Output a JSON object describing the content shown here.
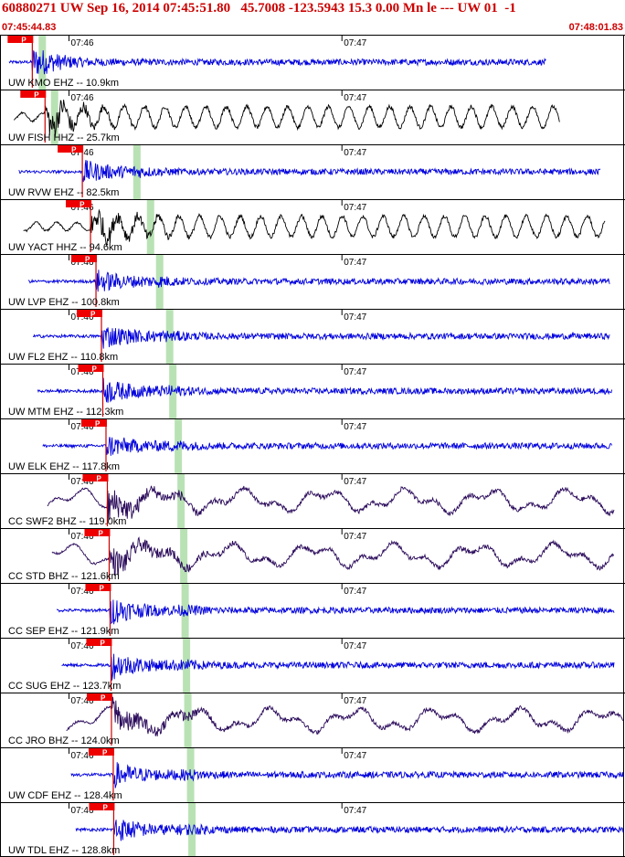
{
  "header": {
    "title": "60880271 UW Sep 16, 2014 07:45:51.80   45.7008 -123.5943 15.3 0.00 Mn le --- UW 01  -1",
    "start_time": "07:45:44.83",
    "end_time": "07:48:01.83"
  },
  "colors": {
    "header_text": "#cc0000",
    "pick_box": "#ee0000",
    "s_band": "#b9e2b4",
    "panel_border": "#000000",
    "ehz_trace": "#0000dd",
    "hhz_trace": "#000000",
    "bhz_trace": "#2a0a5a"
  },
  "chart_data": {
    "type": "line",
    "x_unit": "time",
    "x_start": "07:45:44.83",
    "x_end": "07:48:01.83",
    "time_marks": [
      "07:46",
      "07:47"
    ],
    "pick_label": "P",
    "series": [
      {
        "name": "UW KMO EHZ -- 10.9km",
        "station": "KMO",
        "net": "UW",
        "chan": "EHZ",
        "dist_km": 10.9,
        "p_pick_s": 7.1,
        "s_band_s": 9.3,
        "trace_end_s": 120,
        "amplitude": 0.45
      },
      {
        "name": "UW FISH HHZ -- 25.7km",
        "station": "FISH",
        "net": "UW",
        "chan": "HHZ",
        "dist_km": 25.7,
        "p_pick_s": 9.9,
        "s_band_s": 12.0,
        "trace_end_s": 123,
        "amplitude": 0.85
      },
      {
        "name": "UW RVW EHZ -- 82.5km",
        "station": "RVW",
        "net": "UW",
        "chan": "EHZ",
        "dist_km": 82.5,
        "p_pick_s": 18.1,
        "s_band_s": 30.1,
        "trace_end_s": 132,
        "amplitude": 0.4
      },
      {
        "name": "UW YACT HHZ -- 94.6km",
        "station": "YACT",
        "net": "UW",
        "chan": "HHZ",
        "dist_km": 94.6,
        "p_pick_s": 19.9,
        "s_band_s": 33.1,
        "trace_end_s": 133,
        "amplitude": 0.85
      },
      {
        "name": "UW LVP EHZ -- 100.8km",
        "station": "LVP",
        "net": "UW",
        "chan": "EHZ",
        "dist_km": 100.8,
        "p_pick_s": 21.1,
        "s_band_s": 35.1,
        "trace_end_s": 134,
        "amplitude": 0.4
      },
      {
        "name": "UW FL2 EHZ -- 110.8km",
        "station": "FL2",
        "net": "UW",
        "chan": "EHZ",
        "dist_km": 110.8,
        "p_pick_s": 22.3,
        "s_band_s": 37.3,
        "trace_end_s": 134,
        "amplitude": 0.45
      },
      {
        "name": "UW MTM EHZ -- 112.3km",
        "station": "MTM",
        "net": "UW",
        "chan": "EHZ",
        "dist_km": 112.3,
        "p_pick_s": 22.6,
        "s_band_s": 38.0,
        "trace_end_s": 134.5,
        "amplitude": 0.45
      },
      {
        "name": "UW ELK EHZ -- 117.8km",
        "station": "ELK",
        "net": "UW",
        "chan": "EHZ",
        "dist_km": 117.8,
        "p_pick_s": 23.3,
        "s_band_s": 39.2,
        "trace_end_s": 134.5,
        "amplitude": 0.4
      },
      {
        "name": "CC SWF2 BHZ -- 119.0km",
        "station": "SWF2",
        "net": "CC",
        "chan": "BHZ",
        "dist_km": 119.0,
        "p_pick_s": 23.6,
        "s_band_s": 39.8,
        "trace_end_s": 135,
        "amplitude": 0.95
      },
      {
        "name": "CC STD BHZ -- 121.6km",
        "station": "STD",
        "net": "CC",
        "chan": "BHZ",
        "dist_km": 121.6,
        "p_pick_s": 24.0,
        "s_band_s": 40.4,
        "trace_end_s": 135,
        "amplitude": 0.8
      },
      {
        "name": "CC SEP EHZ -- 121.9km",
        "station": "SEP",
        "net": "CC",
        "chan": "EHZ",
        "dist_km": 121.9,
        "p_pick_s": 24.2,
        "s_band_s": 40.7,
        "trace_end_s": 135,
        "amplitude": 0.5
      },
      {
        "name": "CC SUG EHZ -- 123.7km",
        "station": "SUG",
        "net": "CC",
        "chan": "EHZ",
        "dist_km": 123.7,
        "p_pick_s": 24.4,
        "s_band_s": 41.0,
        "trace_end_s": 135,
        "amplitude": 0.5
      },
      {
        "name": "CC JRO BHZ -- 124.0km",
        "station": "JRO",
        "net": "CC",
        "chan": "BHZ",
        "dist_km": 124.0,
        "p_pick_s": 24.5,
        "s_band_s": 41.3,
        "trace_end_s": 137,
        "amplitude": 0.85
      },
      {
        "name": "UW CDF EHZ -- 128.4km",
        "station": "CDF",
        "net": "UW",
        "chan": "EHZ",
        "dist_km": 128.4,
        "p_pick_s": 24.9,
        "s_band_s": 41.9,
        "trace_end_s": 137,
        "amplitude": 0.45
      },
      {
        "name": "UW TDL EHZ -- 128.8km",
        "station": "TDL",
        "net": "UW",
        "chan": "EHZ",
        "dist_km": 128.8,
        "p_pick_s": 25.0,
        "s_band_s": 42.2,
        "trace_end_s": 137,
        "amplitude": 0.45
      }
    ]
  }
}
